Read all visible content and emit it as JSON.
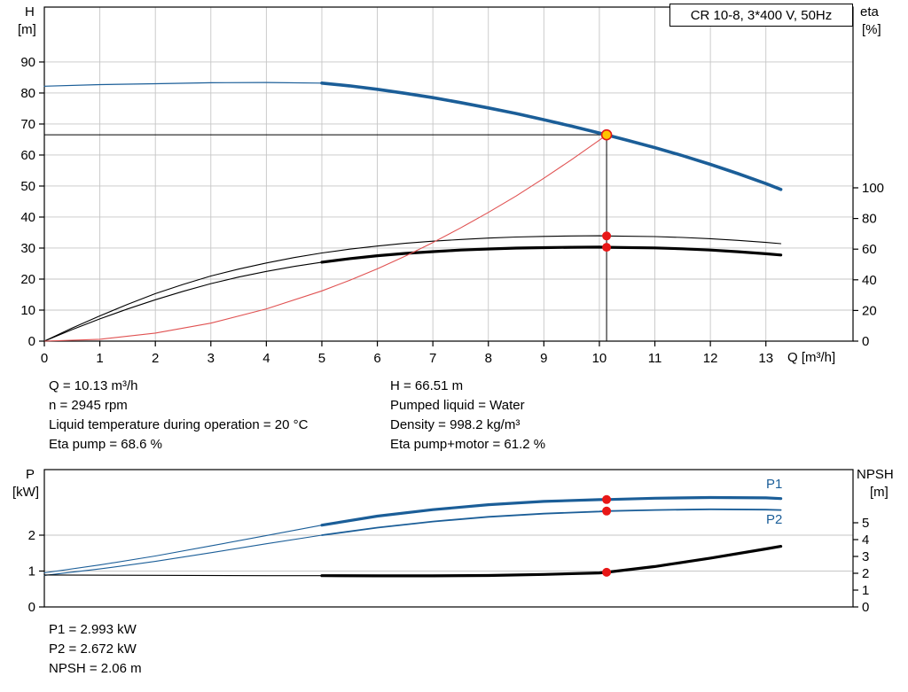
{
  "title_box": "CR 10-8, 3*400 V, 50Hz",
  "axis_corner_labels": {
    "top_left_1": "H",
    "top_left_2": "[m]",
    "top_right_1": "eta",
    "top_right_2": "[%]",
    "x_label": "Q [m³/h]",
    "bottom_left_1": "P",
    "bottom_left_2": "[kW]",
    "bottom_right_1": "NPSH",
    "bottom_right_2": "[m]"
  },
  "curve_labels": {
    "p1": "P1",
    "p2": "P2"
  },
  "annotations": {
    "mid_left": [
      "Q = 10.13 m³/h",
      "n = 2945 rpm",
      "Liquid temperature during operation = 20 °C",
      "Eta pump = 68.6 %"
    ],
    "mid_right": [
      "H = 66.51 m",
      "Pumped liquid = Water",
      "Density = 998.2 kg/m³",
      "Eta pump+motor = 61.2 %"
    ],
    "bottom": [
      "P1 = 2.993 kW",
      "P2 = 2.672 kW",
      "NPSH = 2.06 m"
    ]
  },
  "chart_data": [
    {
      "id": "top",
      "type": "line",
      "title": "CR 10-8, 3*400 V, 50Hz",
      "x_axis": {
        "label": "Q [m³/h]",
        "min": 0,
        "max": 14.57,
        "ticks": [
          0,
          1,
          2,
          3,
          4,
          5,
          6,
          7,
          8,
          9,
          10,
          11,
          12,
          13
        ]
      },
      "y_left": {
        "label": "H [m]",
        "min": 0,
        "max": 107.7,
        "ticks": [
          0,
          10,
          20,
          30,
          40,
          50,
          60,
          70,
          80,
          90
        ]
      },
      "y_right": {
        "label": "eta [%]",
        "min": 0,
        "max": 217.9,
        "ticks": [
          0,
          20,
          40,
          60,
          80,
          100
        ]
      },
      "grid": {
        "x": true,
        "y": true
      },
      "x_tick_labels": true,
      "series": [
        {
          "name": "head-curve-extended",
          "axis": "y",
          "color": "#1b5e98",
          "width": 1.2,
          "points": [
            [
              0,
              82.2
            ],
            [
              1,
              82.7
            ],
            [
              2,
              83.0
            ],
            [
              3,
              83.3
            ],
            [
              4,
              83.4
            ],
            [
              5,
              83.2
            ]
          ]
        },
        {
          "name": "head-curve",
          "axis": "y",
          "color": "#1b5e98",
          "width": 3.6,
          "points": [
            [
              5,
              83.2
            ],
            [
              5.5,
              82.3
            ],
            [
              6,
              81.2
            ],
            [
              6.5,
              79.9
            ],
            [
              7,
              78.5
            ],
            [
              7.5,
              76.9
            ],
            [
              8,
              75.2
            ],
            [
              8.5,
              73.4
            ],
            [
              9,
              71.4
            ],
            [
              9.5,
              69.3
            ],
            [
              10,
              67.1
            ],
            [
              10.13,
              66.51
            ],
            [
              10.5,
              64.8
            ],
            [
              11,
              62.4
            ],
            [
              11.5,
              59.8
            ],
            [
              12,
              57.0
            ],
            [
              12.5,
              54.0
            ],
            [
              13,
              50.8
            ],
            [
              13.27,
              48.9
            ]
          ]
        },
        {
          "name": "eta-pump-curve",
          "axis": "y2",
          "color": "#000000",
          "width": 1.1,
          "points": [
            [
              0,
              0
            ],
            [
              0.5,
              8.5
            ],
            [
              1,
              16.5
            ],
            [
              1.5,
              24
            ],
            [
              2,
              31
            ],
            [
              2.5,
              37
            ],
            [
              3,
              42.5
            ],
            [
              3.5,
              47
            ],
            [
              4,
              51
            ],
            [
              4.5,
              54.5
            ],
            [
              5,
              57.5
            ],
            [
              5.5,
              60
            ],
            [
              6,
              62
            ],
            [
              6.5,
              63.8
            ],
            [
              7,
              65.2
            ],
            [
              7.5,
              66.3
            ],
            [
              8,
              67.2
            ],
            [
              8.5,
              67.9
            ],
            [
              9,
              68.3
            ],
            [
              9.5,
              68.6
            ],
            [
              10,
              68.7
            ],
            [
              10.13,
              68.6
            ],
            [
              11,
              68.2
            ],
            [
              11.5,
              67.6
            ],
            [
              12,
              66.8
            ],
            [
              12.5,
              65.7
            ],
            [
              13,
              64.4
            ],
            [
              13.27,
              63.6
            ]
          ]
        },
        {
          "name": "eta-pump-motor-extended",
          "axis": "y2",
          "color": "#000000",
          "width": 1.1,
          "points": [
            [
              0,
              0
            ],
            [
              0.5,
              7.5
            ],
            [
              1,
              14.5
            ],
            [
              1.5,
              21
            ],
            [
              2,
              27
            ],
            [
              2.5,
              32.5
            ],
            [
              3,
              37.5
            ],
            [
              3.5,
              41.8
            ],
            [
              4,
              45.5
            ],
            [
              4.5,
              48.7
            ],
            [
              5,
              51.5
            ]
          ]
        },
        {
          "name": "eta-pump-motor-curve",
          "axis": "y2",
          "color": "#000000",
          "width": 3.2,
          "points": [
            [
              5,
              51.5
            ],
            [
              5.5,
              53.8
            ],
            [
              6,
              55.7
            ],
            [
              6.5,
              57.2
            ],
            [
              7,
              58.4
            ],
            [
              7.5,
              59.4
            ],
            [
              8,
              60.1
            ],
            [
              8.5,
              60.7
            ],
            [
              9,
              61.0
            ],
            [
              9.5,
              61.2
            ],
            [
              10,
              61.3
            ],
            [
              10.13,
              61.2
            ],
            [
              11,
              60.8
            ],
            [
              11.5,
              60.2
            ],
            [
              12,
              59.4
            ],
            [
              12.5,
              58.3
            ],
            [
              13,
              57.0
            ],
            [
              13.27,
              56.2
            ]
          ]
        },
        {
          "name": "system-curve",
          "axis": "y",
          "color": "#e05252",
          "width": 1.1,
          "points": [
            [
              0,
              0
            ],
            [
              1,
              0.6
            ],
            [
              2,
              2.6
            ],
            [
              3,
              5.8
            ],
            [
              4,
              10.4
            ],
            [
              5,
              16.2
            ],
            [
              5.5,
              19.6
            ],
            [
              6,
              23.3
            ],
            [
              6.5,
              27.4
            ],
            [
              7,
              31.8
            ],
            [
              7.5,
              36.5
            ],
            [
              8,
              41.5
            ],
            [
              8.5,
              46.8
            ],
            [
              9,
              52.5
            ],
            [
              9.5,
              58.5
            ],
            [
              10,
              64.8
            ],
            [
              10.13,
              66.51
            ]
          ]
        }
      ],
      "duty": {
        "q": 10.13,
        "crosshair": {
          "h": 66.51
        },
        "dots": [
          {
            "axis": "y2",
            "value": 68.6
          },
          {
            "axis": "y2",
            "value": 61.2
          }
        ],
        "point": {
          "axis": "y",
          "value": 66.51
        }
      }
    },
    {
      "id": "bottom",
      "type": "line",
      "title": "",
      "x_axis": {
        "label": "",
        "min": 0,
        "max": 14.57,
        "ticks": []
      },
      "y_left": {
        "label": "P [kW]",
        "min": 0,
        "max": 3.827,
        "ticks": [
          0,
          1,
          2
        ]
      },
      "y_right": {
        "label": "NPSH [m]",
        "min": 0,
        "max": 8.158,
        "ticks": [
          0,
          1,
          2,
          3,
          4,
          5
        ]
      },
      "grid": {
        "x": false,
        "y": true
      },
      "x_tick_labels": false,
      "series": [
        {
          "name": "p1-extended",
          "axis": "y",
          "color": "#1b5e98",
          "width": 1.1,
          "points": [
            [
              0,
              0.95
            ],
            [
              1,
              1.17
            ],
            [
              2,
              1.42
            ],
            [
              3,
              1.7
            ],
            [
              4,
              1.99
            ],
            [
              5,
              2.28
            ]
          ]
        },
        {
          "name": "p1-curve",
          "axis": "y",
          "color": "#1b5e98",
          "width": 3.2,
          "points": [
            [
              5,
              2.28
            ],
            [
              6,
              2.53
            ],
            [
              7,
              2.71
            ],
            [
              8,
              2.85
            ],
            [
              9,
              2.94
            ],
            [
              10,
              2.99
            ],
            [
              10.13,
              2.993
            ],
            [
              11,
              3.03
            ],
            [
              12,
              3.05
            ],
            [
              13,
              3.04
            ],
            [
              13.27,
              3.02
            ]
          ]
        },
        {
          "name": "p2-extended",
          "axis": "y",
          "color": "#1b5e98",
          "width": 1.1,
          "points": [
            [
              0,
              0.88
            ],
            [
              1,
              1.06
            ],
            [
              2,
              1.27
            ],
            [
              3,
              1.51
            ],
            [
              4,
              1.76
            ],
            [
              5,
              2.0
            ]
          ]
        },
        {
          "name": "p2-curve",
          "axis": "y",
          "color": "#1b5e98",
          "width": 1.8,
          "points": [
            [
              5,
              2.0
            ],
            [
              6,
              2.21
            ],
            [
              7,
              2.38
            ],
            [
              8,
              2.51
            ],
            [
              9,
              2.6
            ],
            [
              10,
              2.66
            ],
            [
              10.13,
              2.672
            ],
            [
              11,
              2.7
            ],
            [
              12,
              2.72
            ],
            [
              13,
              2.71
            ],
            [
              13.27,
              2.7
            ]
          ]
        },
        {
          "name": "npsh-extended",
          "axis": "y2",
          "color": "#000000",
          "width": 1.1,
          "points": [
            [
              0,
              1.9
            ],
            [
              2,
              1.88
            ],
            [
              4,
              1.86
            ],
            [
              5,
              1.86
            ]
          ]
        },
        {
          "name": "npsh-curve",
          "axis": "y2",
          "color": "#000000",
          "width": 3.2,
          "points": [
            [
              5,
              1.86
            ],
            [
              6,
              1.85
            ],
            [
              7,
              1.85
            ],
            [
              8,
              1.87
            ],
            [
              9,
              1.93
            ],
            [
              10,
              2.02
            ],
            [
              10.13,
              2.06
            ],
            [
              11,
              2.4
            ],
            [
              12,
              2.9
            ],
            [
              13,
              3.45
            ],
            [
              13.27,
              3.6
            ]
          ]
        }
      ],
      "duty": {
        "q": 10.13,
        "dots": [
          {
            "axis": "y",
            "value": 2.993
          },
          {
            "axis": "y",
            "value": 2.672
          },
          {
            "axis": "y2",
            "value": 2.06
          }
        ]
      }
    }
  ],
  "colors": {
    "curve_blue": "#1b5e98",
    "curve_red": "#e05252",
    "dot_red": "#e81717",
    "duty_fill": "#ffc400",
    "duty_stroke": "#e01818",
    "grid": "#c6c6c6"
  }
}
